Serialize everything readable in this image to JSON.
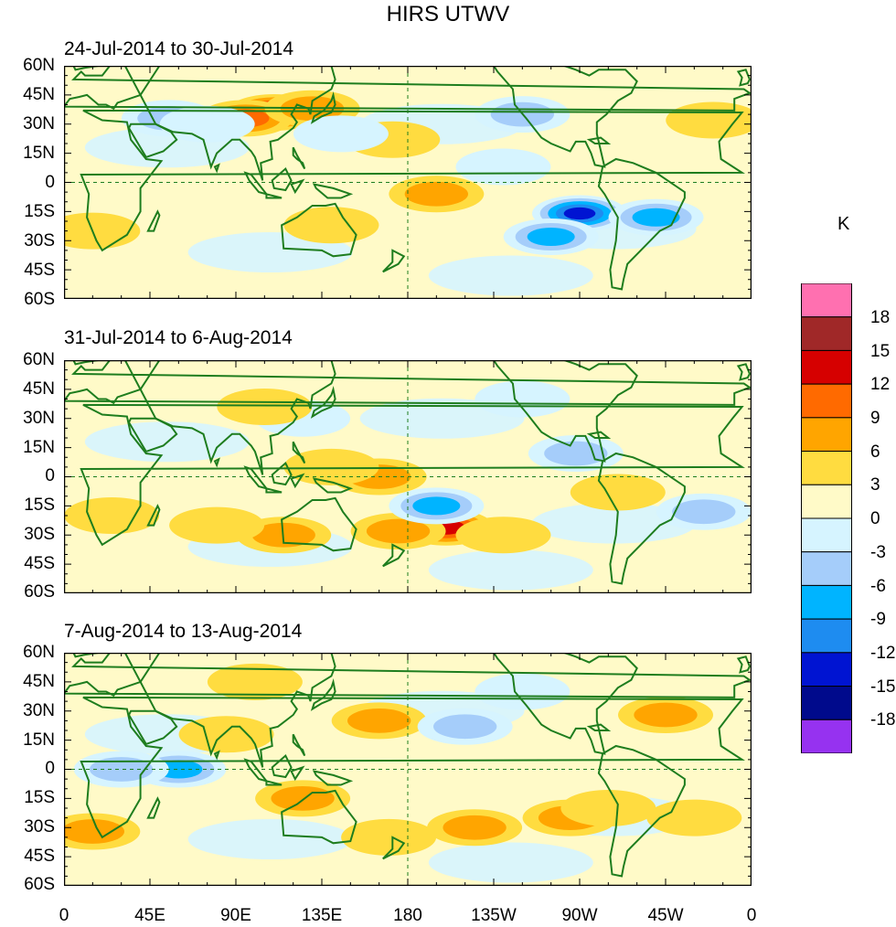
{
  "title": "HIRS UTWV",
  "panels": [
    {
      "title": "24-Jul-2014 to 30-Jul-2014",
      "anomalies": [
        {
          "lon": 110,
          "lat": 36,
          "value": 15
        },
        {
          "lon": 95,
          "lat": 33,
          "value": 9
        },
        {
          "lon": 130,
          "lat": 38,
          "value": 6
        },
        {
          "lon": 55,
          "lat": 33,
          "value": -6
        },
        {
          "lon": 75,
          "lat": 30,
          "value": -4
        },
        {
          "lon": 195,
          "lat": -6,
          "value": 6
        },
        {
          "lon": 172,
          "lat": 22,
          "value": 4
        },
        {
          "lon": 270,
          "lat": -16,
          "value": -16
        },
        {
          "lon": 255,
          "lat": -28,
          "value": -9
        },
        {
          "lon": 310,
          "lat": -18,
          "value": -9
        },
        {
          "lon": 240,
          "lat": 35,
          "value": -6
        },
        {
          "lon": 145,
          "lat": 25,
          "value": -4
        },
        {
          "lon": 340,
          "lat": 32,
          "value": 5
        },
        {
          "lon": 15,
          "lat": -25,
          "value": 4
        },
        {
          "lon": 140,
          "lat": -22,
          "value": 3
        },
        {
          "lon": 230,
          "lat": 8,
          "value": -5
        }
      ]
    },
    {
      "title": "31-Jul-2014 to 6-Aug-2014",
      "anomalies": [
        {
          "lon": 200,
          "lat": -26,
          "value": 13
        },
        {
          "lon": 175,
          "lat": -28,
          "value": 7
        },
        {
          "lon": 230,
          "lat": -30,
          "value": 5
        },
        {
          "lon": 165,
          "lat": 0,
          "value": 7
        },
        {
          "lon": 140,
          "lat": 5,
          "value": 5
        },
        {
          "lon": 115,
          "lat": -30,
          "value": 6
        },
        {
          "lon": 80,
          "lat": -25,
          "value": 5
        },
        {
          "lon": 195,
          "lat": -15,
          "value": -10
        },
        {
          "lon": 125,
          "lat": 30,
          "value": -5
        },
        {
          "lon": 105,
          "lat": 36,
          "value": 5
        },
        {
          "lon": 335,
          "lat": -18,
          "value": -7
        },
        {
          "lon": 268,
          "lat": 12,
          "value": -8
        },
        {
          "lon": 25,
          "lat": -20,
          "value": 4
        },
        {
          "lon": 240,
          "lat": 40,
          "value": -4
        },
        {
          "lon": 290,
          "lat": -8,
          "value": 4
        }
      ]
    },
    {
      "title": "7-Aug-2014 to 13-Aug-2014",
      "anomalies": [
        {
          "lon": 60,
          "lat": 0,
          "value": -10
        },
        {
          "lon": 30,
          "lat": 0,
          "value": -6
        },
        {
          "lon": 85,
          "lat": 18,
          "value": 5
        },
        {
          "lon": 165,
          "lat": 25,
          "value": 7
        },
        {
          "lon": 210,
          "lat": 22,
          "value": -8
        },
        {
          "lon": 125,
          "lat": -15,
          "value": 6
        },
        {
          "lon": 170,
          "lat": -35,
          "value": 5
        },
        {
          "lon": 215,
          "lat": -30,
          "value": 7
        },
        {
          "lon": 265,
          "lat": -25,
          "value": 7
        },
        {
          "lon": 285,
          "lat": -20,
          "value": 5
        },
        {
          "lon": 315,
          "lat": 28,
          "value": 8
        },
        {
          "lon": 15,
          "lat": -32,
          "value": 6
        },
        {
          "lon": 330,
          "lat": -25,
          "value": 4
        },
        {
          "lon": 240,
          "lat": 40,
          "value": -4
        },
        {
          "lon": 100,
          "lat": 45,
          "value": 4
        }
      ]
    }
  ],
  "lat_labels": [
    "60N",
    "45N",
    "30N",
    "15N",
    "0",
    "15S",
    "30S",
    "45S",
    "60S"
  ],
  "lon_labels": [
    "0",
    "45E",
    "90E",
    "135E",
    "180",
    "135W",
    "90W",
    "45W",
    "0"
  ],
  "colorbar": {
    "unit": "K",
    "ticks": [
      "18",
      "15",
      "12",
      "9",
      "6",
      "3",
      "0",
      "-3",
      "-6",
      "-9",
      "-12",
      "-15",
      "-18"
    ],
    "colors": [
      "#ff70b0",
      "#a02828",
      "#d60000",
      "#ff6a00",
      "#ffa500",
      "#ffdc40",
      "#fffac8",
      "#d6f4ff",
      "#a5cdfa",
      "#00b4ff",
      "#1e8cf0",
      "#0014d2",
      "#000a8c",
      "#9632f0"
    ]
  },
  "chart_data": [
    {
      "type": "heatmap",
      "title": "24-Jul-2014 to 30-Jul-2014",
      "xlabel": "",
      "ylabel": "",
      "xlim": [
        0,
        360
      ],
      "ylim": [
        -60,
        60
      ],
      "unit": "K"
    },
    {
      "type": "heatmap",
      "title": "31-Jul-2014 to 6-Aug-2014",
      "xlabel": "",
      "ylabel": "",
      "xlim": [
        0,
        360
      ],
      "ylim": [
        -60,
        60
      ],
      "unit": "K"
    },
    {
      "type": "heatmap",
      "title": "7-Aug-2014 to 13-Aug-2014",
      "xlabel": "",
      "ylabel": "",
      "xlim": [
        0,
        360
      ],
      "ylim": [
        -60,
        60
      ],
      "unit": "K"
    }
  ]
}
